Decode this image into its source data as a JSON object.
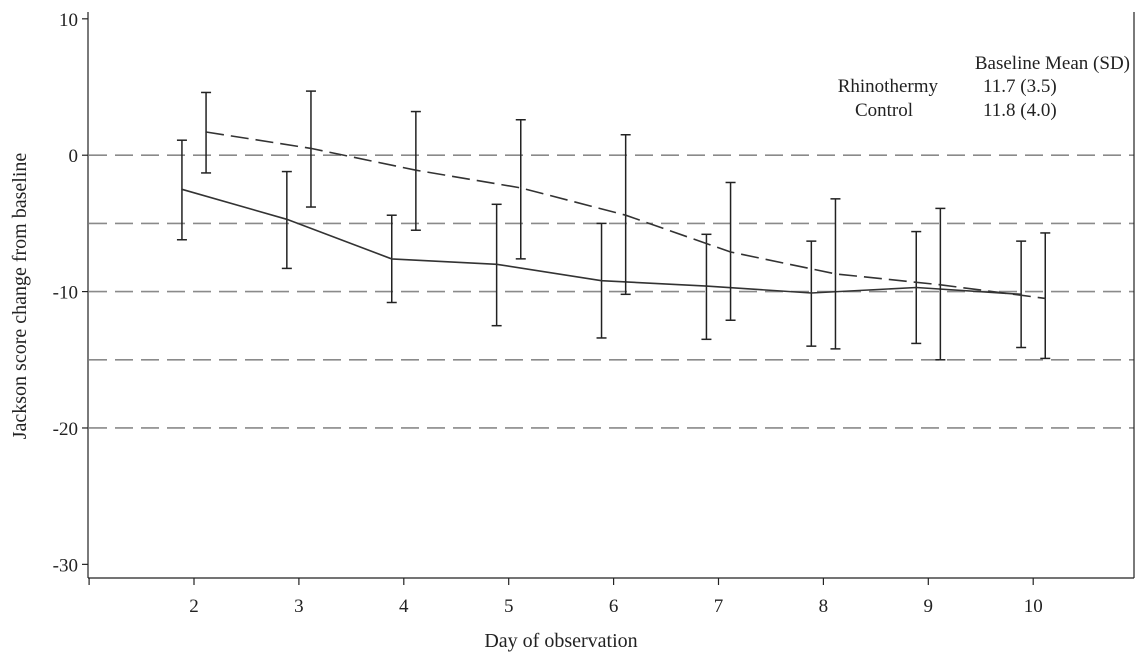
{
  "chart_data": {
    "type": "line",
    "title": "",
    "xlabel": "Day of observation",
    "ylabel": "Jackson score change from baseline",
    "xlim": [
      1,
      11
    ],
    "ylim": [
      -31,
      10.5
    ],
    "xticks": [
      2,
      3,
      4,
      5,
      6,
      7,
      8,
      9,
      10
    ],
    "yticks": [
      10,
      0,
      -10,
      -20,
      -30
    ],
    "reference_lines_y": [
      0,
      -5,
      -10,
      -15,
      -20
    ],
    "grid": "horizontal dashed",
    "series": [
      {
        "name": "Rhinothermy",
        "style": "solid",
        "x": [
          2,
          3,
          4,
          5,
          6,
          7,
          8,
          9,
          10
        ],
        "y": [
          -2.5,
          -4.7,
          -7.6,
          -8.0,
          -9.2,
          -9.6,
          -10.1,
          -9.7,
          -10.2
        ],
        "err_low": [
          -6.2,
          -8.3,
          -10.8,
          -12.5,
          -13.4,
          -13.5,
          -14.0,
          -13.8,
          -14.1
        ],
        "err_high": [
          1.1,
          -1.2,
          -4.4,
          -3.6,
          -5.0,
          -5.8,
          -6.3,
          -5.6,
          -6.3
        ]
      },
      {
        "name": "Control",
        "style": "dashed",
        "x": [
          2,
          3,
          4,
          5,
          6,
          7,
          8,
          9,
          10
        ],
        "y": [
          1.7,
          0.5,
          -1.1,
          -2.4,
          -4.4,
          -7.1,
          -8.7,
          -9.5,
          -10.5
        ],
        "err_low": [
          -1.3,
          -3.8,
          -5.5,
          -7.6,
          -10.2,
          -12.1,
          -14.2,
          -15.0,
          -14.9
        ],
        "err_high": [
          4.6,
          4.7,
          3.2,
          2.6,
          1.5,
          -2.0,
          -3.2,
          -3.9,
          -5.7
        ]
      }
    ],
    "legend": {
      "placement": "top-right",
      "header": "Baseline Mean (SD)",
      "rows": [
        {
          "label": "Rhinothermy",
          "value": "11.7 (3.5)"
        },
        {
          "label": "Control",
          "value": "11.8 (4.0)"
        }
      ]
    }
  }
}
